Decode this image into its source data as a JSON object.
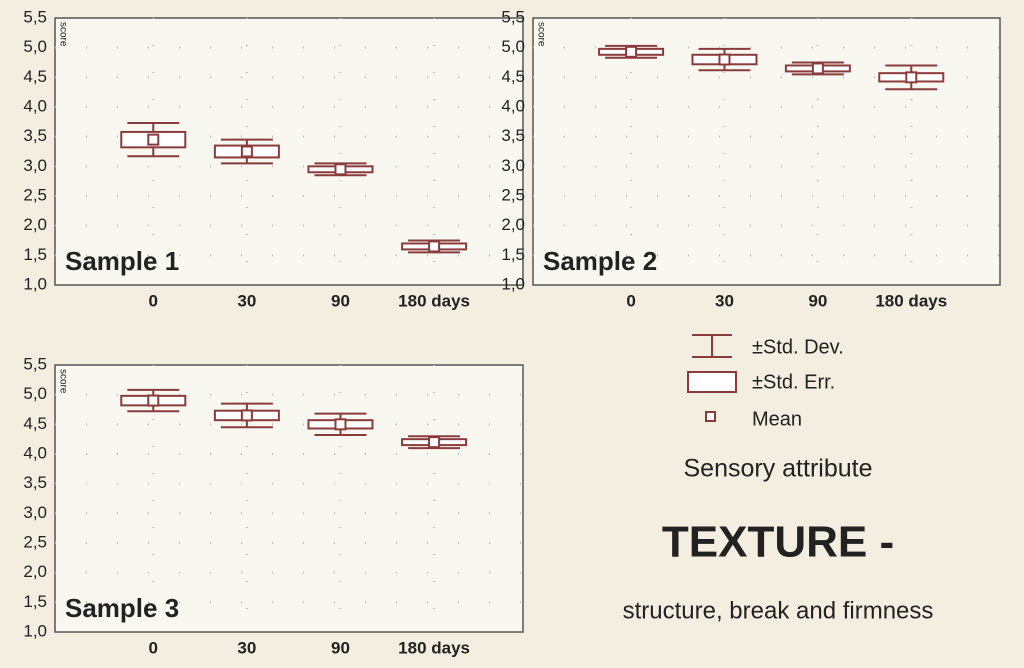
{
  "chart_data": [
    {
      "type": "box",
      "title": "Sample 1",
      "ylabel": "score",
      "categories": [
        "0",
        "30",
        "90",
        "180 days"
      ],
      "mean": [
        3.45,
        3.25,
        2.95,
        1.65
      ],
      "se": [
        0.13,
        0.1,
        0.05,
        0.05
      ],
      "sd": [
        0.28,
        0.2,
        0.1,
        0.1
      ],
      "ylim": [
        1,
        5.5
      ],
      "yticks": [
        {
          "value": 1,
          "label": "1,0"
        },
        {
          "value": 1.5,
          "label": "1,5"
        },
        {
          "value": 2,
          "label": "2,0"
        },
        {
          "value": 2.5,
          "label": "2,5"
        },
        {
          "value": 3,
          "label": "3,0"
        },
        {
          "value": 3.5,
          "label": "3,5"
        },
        {
          "value": 4,
          "label": "4,0"
        },
        {
          "value": 4.5,
          "label": "4,5"
        },
        {
          "value": 5,
          "label": "5,0"
        },
        {
          "value": 5.5,
          "label": "5,5"
        }
      ],
      "grid": true,
      "color": "#8a3b3b"
    },
    {
      "type": "box",
      "title": "Sample 2",
      "ylabel": "score",
      "categories": [
        "0",
        "30",
        "90",
        "180 days"
      ],
      "mean": [
        4.93,
        4.8,
        4.65,
        4.5
      ],
      "se": [
        0.05,
        0.08,
        0.05,
        0.07
      ],
      "sd": [
        0.1,
        0.18,
        0.1,
        0.2
      ],
      "ylim": [
        1,
        5.5
      ],
      "grid": true,
      "color": "#8a3b3b"
    },
    {
      "type": "box",
      "title": "Sample 3",
      "ylabel": "score",
      "categories": [
        "0",
        "30",
        "90",
        "180 days"
      ],
      "mean": [
        4.9,
        4.65,
        4.5,
        4.2
      ],
      "se": [
        0.08,
        0.08,
        0.07,
        0.05
      ],
      "sd": [
        0.18,
        0.2,
        0.18,
        0.1
      ],
      "ylim": [
        1,
        5.5
      ],
      "yticks": [
        {
          "value": 1,
          "label": "1,0"
        },
        {
          "value": 1.5,
          "label": "1,5"
        },
        {
          "value": 2,
          "label": "2,0"
        },
        {
          "value": 2.5,
          "label": "2,5"
        },
        {
          "value": 3,
          "label": "3,0"
        },
        {
          "value": 3.5,
          "label": "3,5"
        },
        {
          "value": 4,
          "label": "4,0"
        },
        {
          "value": 4.5,
          "label": "4,5"
        },
        {
          "value": 5,
          "label": "5,0"
        },
        {
          "value": 5.5,
          "label": "5,5"
        }
      ],
      "grid": true,
      "color": "#8a3b3b"
    }
  ],
  "legend": {
    "sd": "±Std. Dev.",
    "se": "±Std. Err.",
    "mean": "Mean"
  },
  "caption": {
    "subtitle": "Sensory attribute",
    "title": "TEXTURE -",
    "description": "structure, break and firmness"
  }
}
